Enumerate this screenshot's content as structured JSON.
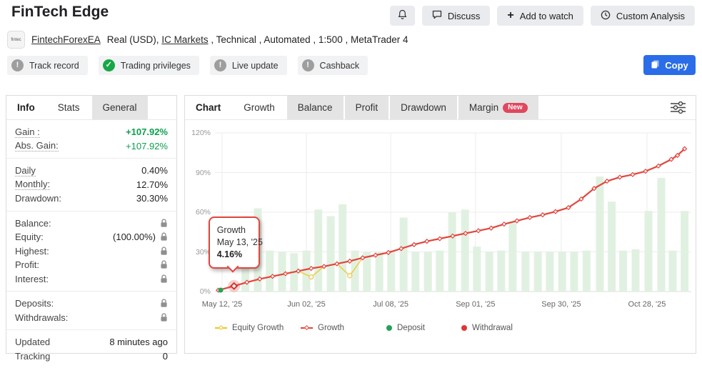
{
  "header": {
    "title": "FinTech Edge",
    "buttons": {
      "discuss": "Discuss",
      "add_to_watch": "Add to watch",
      "custom_analysis": "Custom Analysis"
    },
    "account": {
      "logo_text": "fintec",
      "name": "FintechForexEA",
      "details_prefix": "Real (USD), ",
      "broker_link": "IC Markets",
      "details_suffix": " , Technical , Automated , 1:500 , MetaTrader 4"
    },
    "copy_button": "Copy",
    "chips": [
      {
        "label": "Track record",
        "icon": "exclamation"
      },
      {
        "label": "Trading privileges",
        "icon": "check"
      },
      {
        "label": "Live update",
        "icon": "exclamation"
      },
      {
        "label": "Cashback",
        "icon": "exclamation"
      }
    ]
  },
  "stats_panel": {
    "tabs": [
      {
        "label": "Info"
      },
      {
        "label": "Stats"
      },
      {
        "label": "General"
      }
    ],
    "groups": [
      {
        "rows": [
          {
            "label": "Gain :",
            "dotted": true,
            "value": "+107.92%",
            "style": "green-bold"
          },
          {
            "label": "Abs. Gain:",
            "dotted": true,
            "value": "+107.92%",
            "style": "green"
          }
        ]
      },
      {
        "rows": [
          {
            "label": "Daily",
            "dotted": true,
            "value": "0.40%"
          },
          {
            "label": "Monthly:",
            "dotted": true,
            "value": "12.70%"
          },
          {
            "label": "Drawdown:",
            "value": "30.30%"
          }
        ]
      },
      {
        "rows": [
          {
            "label": "Balance:",
            "lock": true
          },
          {
            "label": "Equity:",
            "value": "(100.00%)",
            "lock": true
          },
          {
            "label": "Highest:",
            "lock": true
          },
          {
            "label": "Profit:",
            "lock": true
          },
          {
            "label": "Interest:",
            "lock": true
          }
        ]
      },
      {
        "rows": [
          {
            "label": "Deposits:",
            "lock": true
          },
          {
            "label": "Withdrawals:",
            "lock": true
          }
        ]
      },
      {
        "rows": [
          {
            "label": "Updated",
            "value": "8 minutes ago"
          },
          {
            "label": "Tracking",
            "value": "0"
          }
        ]
      }
    ]
  },
  "chart_panel": {
    "tabs": [
      {
        "label": "Chart"
      },
      {
        "label": "Growth"
      },
      {
        "label": "Balance"
      },
      {
        "label": "Profit"
      },
      {
        "label": "Drawdown"
      },
      {
        "label": "Margin",
        "badge": "New"
      }
    ]
  },
  "chart_data": {
    "type": "line",
    "title": "Growth",
    "ylim": [
      0,
      120
    ],
    "grid": true,
    "y_ticks": [
      {
        "label": "0%",
        "v": 0
      },
      {
        "label": "30%",
        "v": 30
      },
      {
        "label": "60%",
        "v": 60
      },
      {
        "label": "90%",
        "v": 90
      },
      {
        "label": "120%",
        "v": 120
      }
    ],
    "x_ticks": [
      {
        "label": "May 12, '25",
        "f": 0.015
      },
      {
        "label": "Jun 02, '25",
        "f": 0.192
      },
      {
        "label": "Jul 08, '25",
        "f": 0.369
      },
      {
        "label": "Sep 01, '25",
        "f": 0.547
      },
      {
        "label": "Sep 30, '25",
        "f": 0.727
      },
      {
        "label": "Oct 28, '25",
        "f": 0.907
      }
    ],
    "series": [
      {
        "name": "Equity Growth",
        "color": "#f0c420",
        "points": [
          [
            0.007,
            1
          ],
          [
            0.04,
            4.16
          ],
          [
            0.067,
            7
          ],
          [
            0.094,
            9.5
          ],
          [
            0.121,
            11.5
          ],
          [
            0.148,
            13.5
          ],
          [
            0.175,
            15.5
          ],
          [
            0.202,
            11
          ],
          [
            0.229,
            19
          ],
          [
            0.256,
            21
          ],
          [
            0.283,
            12
          ],
          [
            0.31,
            25.5
          ],
          [
            0.337,
            27.5
          ],
          [
            0.364,
            29.5
          ],
          [
            0.391,
            32.5
          ],
          [
            0.418,
            35.5
          ],
          [
            0.445,
            38
          ],
          [
            0.472,
            40
          ],
          [
            0.499,
            42
          ],
          [
            0.526,
            44
          ],
          [
            0.553,
            46
          ],
          [
            0.58,
            48
          ],
          [
            0.607,
            51
          ],
          [
            0.634,
            53.5
          ],
          [
            0.661,
            56
          ],
          [
            0.688,
            58
          ],
          [
            0.715,
            60.5
          ],
          [
            0.742,
            63.5
          ],
          [
            0.769,
            70
          ],
          [
            0.796,
            78
          ],
          [
            0.823,
            83.5
          ],
          [
            0.85,
            86.5
          ],
          [
            0.877,
            88.5
          ],
          [
            0.904,
            91
          ],
          [
            0.931,
            95
          ],
          [
            0.958,
            100
          ],
          [
            0.971,
            103
          ],
          [
            0.986,
            108
          ]
        ]
      },
      {
        "name": "Growth",
        "color": "#e2453d",
        "points": [
          [
            0.007,
            1
          ],
          [
            0.04,
            4.16
          ],
          [
            0.067,
            7
          ],
          [
            0.094,
            9.5
          ],
          [
            0.121,
            11.5
          ],
          [
            0.148,
            13.5
          ],
          [
            0.175,
            15.5
          ],
          [
            0.202,
            17.5
          ],
          [
            0.229,
            19
          ],
          [
            0.256,
            21
          ],
          [
            0.283,
            23
          ],
          [
            0.31,
            25.5
          ],
          [
            0.337,
            27.5
          ],
          [
            0.364,
            29.5
          ],
          [
            0.391,
            32.5
          ],
          [
            0.418,
            35.5
          ],
          [
            0.445,
            38
          ],
          [
            0.472,
            40
          ],
          [
            0.499,
            42
          ],
          [
            0.526,
            44
          ],
          [
            0.553,
            46
          ],
          [
            0.58,
            48
          ],
          [
            0.607,
            51
          ],
          [
            0.634,
            53.5
          ],
          [
            0.661,
            56
          ],
          [
            0.688,
            58
          ],
          [
            0.715,
            60.5
          ],
          [
            0.742,
            63.5
          ],
          [
            0.769,
            70
          ],
          [
            0.796,
            78
          ],
          [
            0.823,
            83.5
          ],
          [
            0.85,
            86.5
          ],
          [
            0.877,
            88.5
          ],
          [
            0.904,
            91
          ],
          [
            0.931,
            95
          ],
          [
            0.958,
            100
          ],
          [
            0.971,
            103
          ],
          [
            0.986,
            108
          ]
        ]
      }
    ],
    "equity_dips": [
      [
        0.202,
        11
      ],
      [
        0.283,
        12
      ]
    ],
    "deposit_bars": [
      [
        0.064,
        57
      ],
      [
        0.09,
        63
      ],
      [
        0.115,
        31
      ],
      [
        0.141,
        30
      ],
      [
        0.166,
        29
      ],
      [
        0.192,
        31
      ],
      [
        0.217,
        62
      ],
      [
        0.243,
        57
      ],
      [
        0.268,
        66
      ],
      [
        0.294,
        31
      ],
      [
        0.319,
        30
      ],
      [
        0.345,
        30
      ],
      [
        0.37,
        31
      ],
      [
        0.396,
        56
      ],
      [
        0.421,
        30
      ],
      [
        0.447,
        30
      ],
      [
        0.472,
        31
      ],
      [
        0.498,
        60
      ],
      [
        0.525,
        62
      ],
      [
        0.55,
        34
      ],
      [
        0.576,
        30
      ],
      [
        0.601,
        31
      ],
      [
        0.625,
        53
      ],
      [
        0.652,
        30
      ],
      [
        0.678,
        30
      ],
      [
        0.703,
        30
      ],
      [
        0.729,
        30
      ],
      [
        0.754,
        30
      ],
      [
        0.78,
        31
      ],
      [
        0.808,
        87
      ],
      [
        0.833,
        68
      ],
      [
        0.857,
        31
      ],
      [
        0.883,
        32
      ],
      [
        0.91,
        61
      ],
      [
        0.937,
        86
      ],
      [
        0.961,
        31
      ],
      [
        0.986,
        61
      ]
    ],
    "deposit_dots": [
      [
        0.012,
        0
      ]
    ],
    "tooltip": {
      "series": "Growth",
      "date": "May 13, '25",
      "value": "4.16%",
      "f": 0.04,
      "v": 4.16
    },
    "legend": [
      {
        "label": "Equity Growth",
        "marker": "line-diamond",
        "color": "#f0c420"
      },
      {
        "label": "Growth",
        "marker": "line-diamond",
        "color": "#e2453d"
      },
      {
        "label": "Deposit",
        "marker": "dot",
        "color": "#22a356"
      },
      {
        "label": "Withdrawal",
        "marker": "dot",
        "color": "#e23535"
      }
    ],
    "legend_position": "bottom"
  },
  "colors": {
    "gain_green": "#0a9f4d",
    "line_red": "#e2453d",
    "bar_green": "#e1f1e1",
    "copy_blue": "#2b6de8",
    "badge_red": "#e0485e",
    "check_green": "#17a747",
    "gray_icon": "#9e9e9e",
    "equity_yellow": "#f0c420",
    "deposit_green": "#22a356"
  }
}
